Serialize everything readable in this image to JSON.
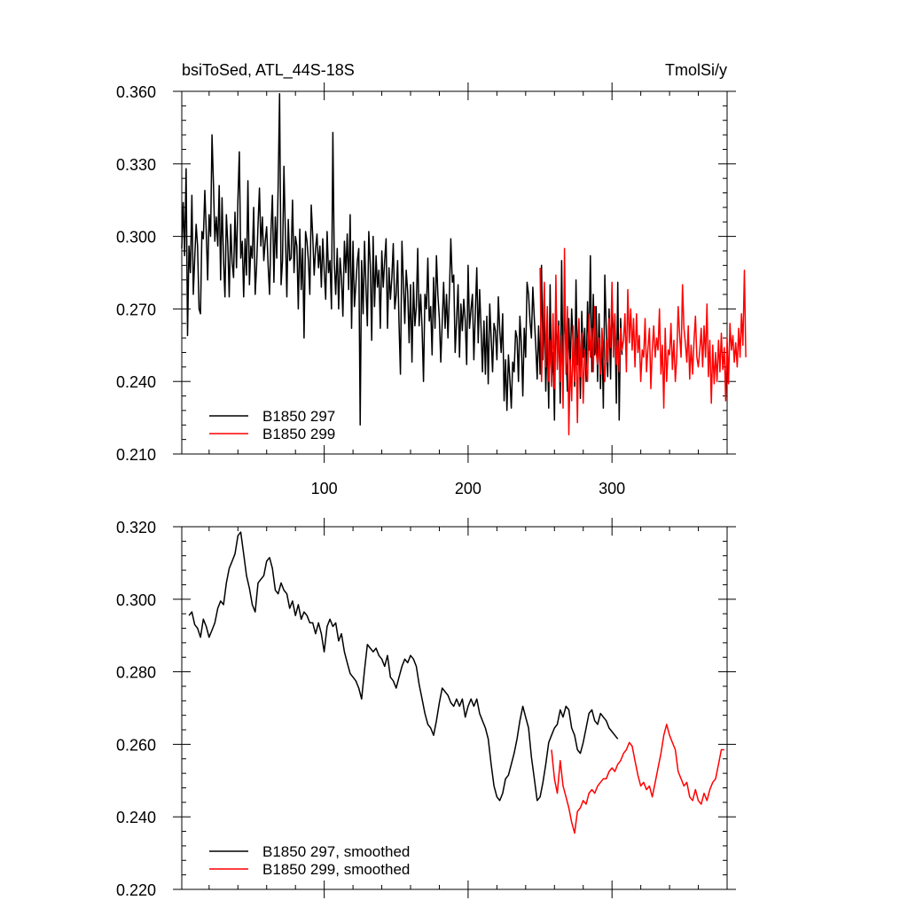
{
  "chart_data": [
    {
      "type": "line",
      "title": "bsiToSed, ATL_44S-18S",
      "units": "TmolSi/y",
      "xlim": [
        1,
        380
      ],
      "ylim": [
        0.21,
        0.36
      ],
      "xticks": [
        100,
        200,
        300
      ],
      "xtick_labels": [
        "100",
        "200",
        "300"
      ],
      "yticks": [
        0.21,
        0.24,
        0.27,
        0.3,
        0.33,
        0.36
      ],
      "ytick_labels": [
        "0.210",
        "0.240",
        "0.270",
        "0.300",
        "0.330",
        "0.360"
      ],
      "legend_position": "bottom-left",
      "series": [
        {
          "name": "B1850 297",
          "color": "#000000",
          "x_start": 1,
          "values": [
            0.295,
            0.314,
            0.292,
            0.328,
            0.259,
            0.296,
            0.285,
            0.317,
            0.276,
            0.291,
            0.305,
            0.296,
            0.27,
            0.268,
            0.302,
            0.299,
            0.319,
            0.302,
            0.282,
            0.309,
            0.3,
            0.342,
            0.322,
            0.298,
            0.308,
            0.296,
            0.321,
            0.282,
            0.316,
            0.29,
            0.275,
            0.309,
            0.297,
            0.275,
            0.305,
            0.289,
            0.283,
            0.31,
            0.287,
            0.315,
            0.335,
            0.291,
            0.298,
            0.275,
            0.299,
            0.284,
            0.323,
            0.28,
            0.296,
            0.291,
            0.312,
            0.276,
            0.288,
            0.305,
            0.32,
            0.296,
            0.308,
            0.29,
            0.298,
            0.304,
            0.288,
            0.276,
            0.302,
            0.317,
            0.281,
            0.308,
            0.291,
            0.321,
            0.359,
            0.28,
            0.29,
            0.329,
            0.302,
            0.275,
            0.307,
            0.29,
            0.291,
            0.315,
            0.285,
            0.3,
            0.296,
            0.27,
            0.303,
            0.278,
            0.295,
            0.258,
            0.302,
            0.298,
            0.29,
            0.276,
            0.313,
            0.3,
            0.284,
            0.295,
            0.301,
            0.287,
            0.296,
            0.279,
            0.299,
            0.286,
            0.274,
            0.302,
            0.285,
            0.29,
            0.27,
            0.343,
            0.289,
            0.276,
            0.295,
            0.27,
            0.291,
            0.283,
            0.267,
            0.298,
            0.285,
            0.301,
            0.278,
            0.309,
            0.262,
            0.298,
            0.271,
            0.28,
            0.29,
            0.295,
            0.222,
            0.29,
            0.268,
            0.298,
            0.279,
            0.263,
            0.302,
            0.288,
            0.257,
            0.3,
            0.271,
            0.292,
            0.279,
            0.286,
            0.262,
            0.294,
            0.279,
            0.29,
            0.299,
            0.262,
            0.287,
            0.274,
            0.283,
            0.297,
            0.27,
            0.276,
            0.29,
            0.264,
            0.243,
            0.298,
            0.281,
            0.264,
            0.286,
            0.277,
            0.256,
            0.28,
            0.248,
            0.281,
            0.263,
            0.271,
            0.295,
            0.263,
            0.276,
            0.262,
            0.24,
            0.276,
            0.27,
            0.291,
            0.265,
            0.271,
            0.251,
            0.283,
            0.262,
            0.292,
            0.276,
            0.266,
            0.248,
            0.264,
            0.281,
            0.262,
            0.276,
            0.258,
            0.276,
            0.299,
            0.281,
            0.284,
            0.252,
            0.265,
            0.28,
            0.25,
            0.272,
            0.261,
            0.274,
            0.265,
            0.247,
            0.288,
            0.262,
            0.27,
            0.276,
            0.249,
            0.268,
            0.287,
            0.256,
            0.278,
            0.262,
            0.244,
            0.265,
            0.243,
            0.267,
            0.239,
            0.272,
            0.258,
            0.244,
            0.264,
            0.261,
            0.249,
            0.275,
            0.261,
            0.252,
            0.268,
            0.232,
            0.249,
            0.228,
            0.251,
            0.241,
            0.229,
            0.248,
            0.244,
            0.261,
            0.258,
            0.24,
            0.267,
            0.255,
            0.234,
            0.262,
            0.25,
            0.281,
            0.276,
            0.265,
            0.258,
            0.279,
            0.266,
            0.255,
            0.241,
            0.263,
            0.243,
            0.288,
            0.249,
            0.27,
            0.236,
            0.26,
            0.229,
            0.28,
            0.24,
            0.252,
            0.224,
            0.276,
            0.248,
            0.265,
            0.231,
            0.29,
            0.24,
            0.272,
            0.253,
            0.236,
            0.266,
            0.245,
            0.27,
            0.255,
            0.238,
            0.282,
            0.247,
            0.265,
            0.233,
            0.269,
            0.25,
            0.262,
            0.24,
            0.273,
            0.253,
            0.292,
            0.244,
            0.276,
            0.251,
            0.271,
            0.24,
            0.268,
            0.237,
            0.261,
            0.229,
            0.284,
            0.262,
            0.242,
            0.27,
            0.241,
            0.275,
            0.255,
            0.267,
            0.231,
            0.281,
            0.224,
            0.266,
            0.251
          ]
        },
        {
          "name": "B1850 299",
          "color": "#ff0000",
          "x_start": 250,
          "values": [
            0.287,
            0.24,
            0.262,
            0.281,
            0.246,
            0.271,
            0.24,
            0.257,
            0.238,
            0.268,
            0.237,
            0.284,
            0.245,
            0.263,
            0.24,
            0.259,
            0.229,
            0.295,
            0.243,
            0.271,
            0.218,
            0.249,
            0.232,
            0.263,
            0.24,
            0.258,
            0.223,
            0.266,
            0.242,
            0.26,
            0.231,
            0.253,
            0.246,
            0.24,
            0.268,
            0.25,
            0.262,
            0.244,
            0.271,
            0.252,
            0.247,
            0.258,
            0.243,
            0.262,
            0.25,
            0.24,
            0.257,
            0.248,
            0.266,
            0.254,
            0.281,
            0.25,
            0.268,
            0.247,
            0.257,
            0.244,
            0.262,
            0.253,
            0.257,
            0.268,
            0.244,
            0.278,
            0.256,
            0.27,
            0.253,
            0.266,
            0.246,
            0.268,
            0.252,
            0.259,
            0.24,
            0.253,
            0.25,
            0.266,
            0.244,
            0.254,
            0.262,
            0.237,
            0.253,
            0.263,
            0.25,
            0.258,
            0.253,
            0.27,
            0.243,
            0.255,
            0.229,
            0.262,
            0.24,
            0.253,
            0.251,
            0.264,
            0.245,
            0.257,
            0.24,
            0.25,
            0.271,
            0.259,
            0.25,
            0.28,
            0.262,
            0.256,
            0.248,
            0.263,
            0.241,
            0.255,
            0.243,
            0.257,
            0.267,
            0.25,
            0.246,
            0.253,
            0.262,
            0.246,
            0.263,
            0.25,
            0.272,
            0.242,
            0.257,
            0.231,
            0.255,
            0.239,
            0.252,
            0.24,
            0.257,
            0.244,
            0.26,
            0.245,
            0.254,
            0.232,
            0.258,
            0.239,
            0.264,
            0.253,
            0.259,
            0.248,
            0.256,
            0.246,
            0.262,
            0.25,
            0.268,
            0.255,
            0.286,
            0.25
          ]
        }
      ]
    },
    {
      "type": "line",
      "xlim": [
        1,
        380
      ],
      "ylim": [
        0.22,
        0.32
      ],
      "yticks": [
        0.22,
        0.24,
        0.26,
        0.28,
        0.3,
        0.32
      ],
      "ytick_labels": [
        "0.220",
        "0.240",
        "0.260",
        "0.280",
        "0.300",
        "0.320"
      ],
      "legend_position": "bottom-left",
      "series": [
        {
          "name": "B1850 297, smoothed",
          "color": "#000000",
          "x": [
            6,
            8,
            10,
            12,
            14,
            16,
            18,
            20,
            22,
            24,
            26,
            28,
            30,
            32,
            34,
            36,
            38,
            40,
            42,
            44,
            46,
            48,
            50,
            52,
            54,
            56,
            58,
            60,
            62,
            64,
            66,
            68,
            70,
            72,
            74,
            76,
            78,
            80,
            82,
            84,
            86,
            88,
            90,
            92,
            94,
            96,
            98,
            100,
            102,
            104,
            106,
            108,
            110,
            112,
            114,
            116,
            118,
            120,
            122,
            124,
            126,
            128,
            130,
            132,
            134,
            136,
            138,
            140,
            142,
            144,
            146,
            148,
            150,
            152,
            154,
            156,
            158,
            160,
            162,
            164,
            166,
            168,
            170,
            172,
            174,
            176,
            178,
            180,
            182,
            184,
            186,
            188,
            190,
            192,
            194,
            196,
            198,
            200,
            202,
            204,
            206,
            208,
            210,
            212,
            214,
            216,
            218,
            220,
            222,
            224,
            226,
            228,
            230,
            232,
            234,
            236,
            238,
            240,
            242,
            244,
            246,
            248,
            250,
            252,
            254,
            256,
            258,
            260,
            262,
            264,
            266,
            268,
            270,
            272,
            274,
            276,
            278,
            280,
            282,
            284,
            286,
            288,
            290,
            292,
            294,
            296,
            298,
            300,
            302,
            304
          ],
          "values": [
            0.2955,
            0.2965,
            0.293,
            0.292,
            0.2895,
            0.2945,
            0.2925,
            0.2895,
            0.2915,
            0.2935,
            0.2975,
            0.2995,
            0.2985,
            0.3045,
            0.3085,
            0.3105,
            0.3125,
            0.3175,
            0.3185,
            0.3125,
            0.3065,
            0.303,
            0.2985,
            0.2965,
            0.3045,
            0.3055,
            0.3065,
            0.3105,
            0.3115,
            0.3085,
            0.3025,
            0.3015,
            0.3045,
            0.3025,
            0.3015,
            0.2975,
            0.2995,
            0.2955,
            0.2985,
            0.2945,
            0.2965,
            0.2955,
            0.2935,
            0.2935,
            0.2905,
            0.2935,
            0.2905,
            0.2855,
            0.2925,
            0.2945,
            0.2925,
            0.2935,
            0.2885,
            0.2905,
            0.2855,
            0.2825,
            0.2795,
            0.2785,
            0.2775,
            0.2755,
            0.2725,
            0.2805,
            0.2875,
            0.2865,
            0.2855,
            0.2865,
            0.2845,
            0.2835,
            0.2815,
            0.2845,
            0.2785,
            0.2775,
            0.2755,
            0.2785,
            0.2815,
            0.2835,
            0.2825,
            0.2845,
            0.2835,
            0.2815,
            0.2765,
            0.2725,
            0.2685,
            0.2655,
            0.2645,
            0.2625,
            0.2665,
            0.2715,
            0.2755,
            0.2745,
            0.2735,
            0.2715,
            0.2705,
            0.2725,
            0.2705,
            0.2725,
            0.2675,
            0.2705,
            0.2725,
            0.2705,
            0.2725,
            0.2685,
            0.2665,
            0.2645,
            0.2615,
            0.2545,
            0.2485,
            0.2455,
            0.2445,
            0.2465,
            0.2505,
            0.2515,
            0.2545,
            0.2575,
            0.2615,
            0.2665,
            0.2705,
            0.2675,
            0.2645,
            0.2565,
            0.2505,
            0.2445,
            0.2455,
            0.2495,
            0.2545,
            0.2605,
            0.2625,
            0.2645,
            0.2655,
            0.2695,
            0.2675,
            0.2705,
            0.2695,
            0.2645,
            0.2625,
            0.2585,
            0.2575,
            0.2605,
            0.2645,
            0.2685,
            0.2695,
            0.2665,
            0.2655,
            0.2685,
            0.2675,
            0.2665,
            0.2645,
            0.2635,
            0.2625,
            0.2615
          ]
        },
        {
          "name": "B1850 299, smoothed",
          "color": "#ff0000",
          "x": [
            258,
            260,
            262,
            264,
            266,
            268,
            270,
            272,
            274,
            276,
            278,
            280,
            282,
            284,
            286,
            288,
            290,
            292,
            294,
            296,
            298,
            300,
            302,
            304,
            306,
            308,
            310,
            312,
            314,
            316,
            318,
            320,
            322,
            324,
            326,
            328,
            330,
            332,
            334,
            336,
            338,
            340,
            342,
            344,
            346,
            348,
            350,
            352,
            354,
            356,
            358,
            360,
            362,
            364,
            366,
            368,
            370,
            372,
            374,
            376,
            378
          ],
          "values": [
            0.2585,
            0.2505,
            0.2465,
            0.2555,
            0.2485,
            0.2455,
            0.2425,
            0.2385,
            0.2355,
            0.2415,
            0.2425,
            0.2445,
            0.2435,
            0.2465,
            0.2475,
            0.2465,
            0.2485,
            0.2495,
            0.2505,
            0.2505,
            0.2525,
            0.2535,
            0.2525,
            0.2545,
            0.2555,
            0.2575,
            0.2585,
            0.2605,
            0.2595,
            0.2555,
            0.2515,
            0.2485,
            0.2495,
            0.2475,
            0.2485,
            0.2455,
            0.2495,
            0.2535,
            0.2575,
            0.2625,
            0.2655,
            0.2625,
            0.2605,
            0.2585,
            0.2525,
            0.2505,
            0.2485,
            0.2495,
            0.2455,
            0.2445,
            0.2475,
            0.2445,
            0.2435,
            0.2465,
            0.2445,
            0.2475,
            0.2495,
            0.2505,
            0.2545,
            0.2585,
            0.2585
          ]
        }
      ]
    }
  ]
}
